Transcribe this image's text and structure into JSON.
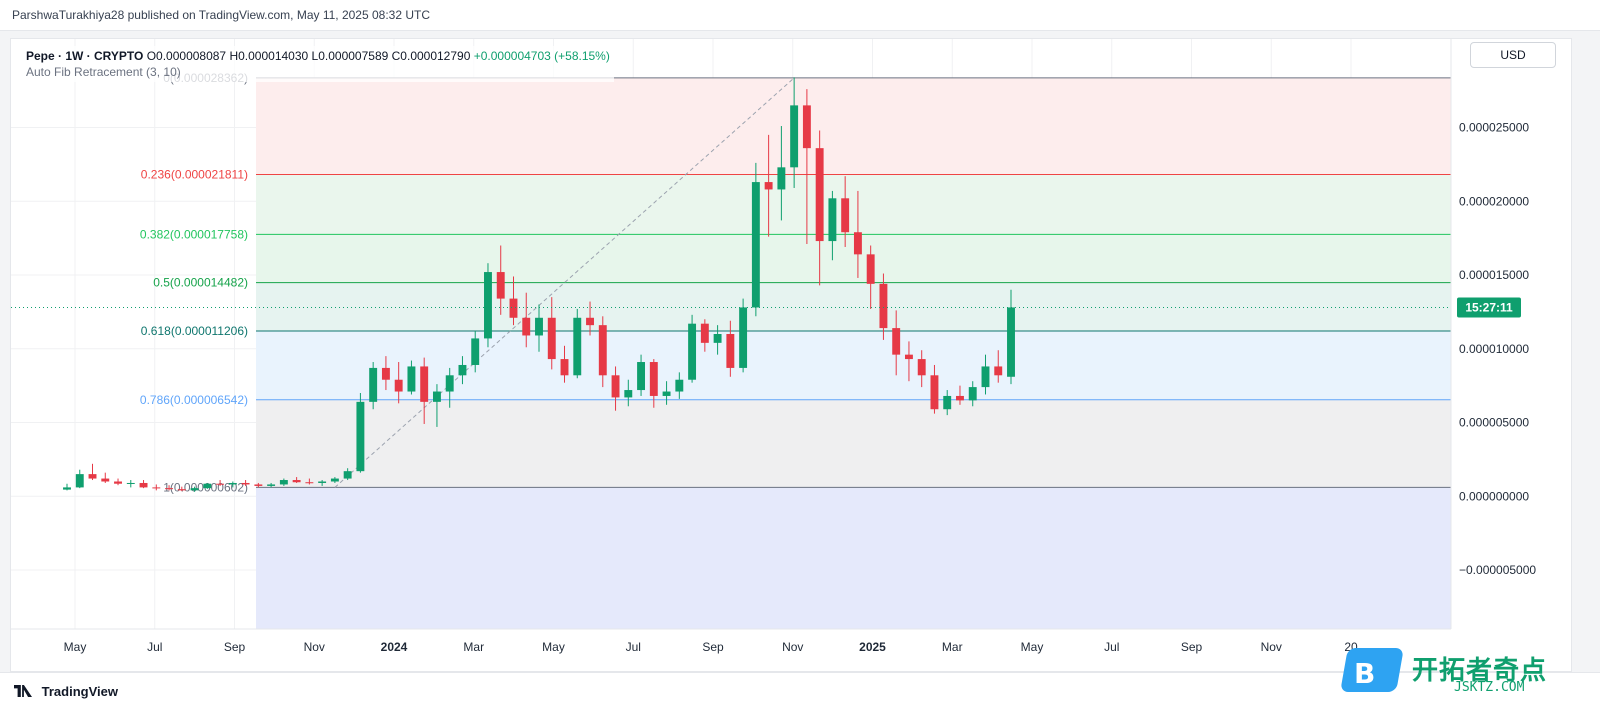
{
  "meta": {
    "attribution": "ParshwaTurakhiya28 published on TradingView.com, May 11, 2025 08:32 UTC",
    "currency": "USD",
    "brand": "TradingView",
    "watermark_cn": "开拓者奇点",
    "watermark_url": "JSKTZ.COM",
    "price_label": "15:27:11"
  },
  "legend": {
    "symbol": "Pepe · 1W · CRYPTO",
    "open": "O0.000008087",
    "high": "H0.000014030",
    "low": "L0.000007589",
    "close": "C0.000012790",
    "change": "+0.000004703 (+58.15%)",
    "indicator": "Auto Fib Retracement (3, 10)"
  },
  "chart_data": {
    "type": "candlestick",
    "title": "Pepe · 1W · CRYPTO",
    "xlabel": "",
    "ylabel": "USD",
    "ylim": [
      -9e-06,
      3.1e-05
    ],
    "y_ticks": [
      "0.000025000",
      "0.000020000",
      "0.000015000",
      "0.000010000",
      "0.000005000",
      "0.000000000",
      "−0.000005000"
    ],
    "y_tick_values": [
      2.5e-05,
      2e-05,
      1.5e-05,
      1e-05,
      5e-06,
      0,
      -5e-06
    ],
    "x_ticks": [
      "May",
      "Jul",
      "Sep",
      "Nov",
      "2024",
      "Mar",
      "May",
      "Jul",
      "Sep",
      "Nov",
      "2025",
      "Mar",
      "May",
      "Jul",
      "Sep",
      "Nov",
      "20"
    ],
    "fib_levels": [
      {
        "label": "0(0.000028362)",
        "value": 2.8362e-05,
        "color": "#6b7280"
      },
      {
        "label": "0.236(0.000021811)",
        "value": 2.1811e-05,
        "color": "#ef4444"
      },
      {
        "label": "0.382(0.000017758)",
        "value": 1.7758e-05,
        "color": "#22c55e"
      },
      {
        "label": "0.5(0.000014482)",
        "value": 1.4482e-05,
        "color": "#16a34a"
      },
      {
        "label": "0.618(0.000011206)",
        "value": 1.1206e-05,
        "color": "#0f766e"
      },
      {
        "label": "0.786(0.000006542)",
        "value": 6.542e-06,
        "color": "#60a5fa"
      },
      {
        "label": "1(0.000000602)",
        "value": 6.02e-07,
        "color": "#6b7280"
      }
    ],
    "candles": [
      {
        "o": 4.5e-07,
        "h": 8.5e-07,
        "l": 4e-07,
        "c": 6e-07
      },
      {
        "o": 6e-07,
        "h": 1.8e-06,
        "l": 5.5e-07,
        "c": 1.5e-06
      },
      {
        "o": 1.5e-06,
        "h": 2.2e-06,
        "l": 1.1e-06,
        "c": 1.2e-06
      },
      {
        "o": 1.2e-06,
        "h": 1.6e-06,
        "l": 9e-07,
        "c": 1e-06
      },
      {
        "o": 1e-06,
        "h": 1.2e-06,
        "l": 7.5e-07,
        "c": 8.5e-07
      },
      {
        "o": 8.5e-07,
        "h": 1.1e-06,
        "l": 6e-07,
        "c": 9e-07
      },
      {
        "o": 9e-07,
        "h": 1.1e-06,
        "l": 5.5e-07,
        "c": 6e-07
      },
      {
        "o": 6e-07,
        "h": 8e-07,
        "l": 4e-07,
        "c": 5.5e-07
      },
      {
        "o": 5.5e-07,
        "h": 7.5e-07,
        "l": 4e-07,
        "c": 4.8e-07
      },
      {
        "o": 4.8e-07,
        "h": 6.5e-07,
        "l": 3.5e-07,
        "c": 4e-07
      },
      {
        "o": 4e-07,
        "h": 6.5e-07,
        "l": 3e-07,
        "c": 5.5e-07
      },
      {
        "o": 5.5e-07,
        "h": 9e-07,
        "l": 5e-07,
        "c": 8.5e-07
      },
      {
        "o": 8.5e-07,
        "h": 1.1e-06,
        "l": 7e-07,
        "c": 8e-07
      },
      {
        "o": 8e-07,
        "h": 1e-06,
        "l": 6e-07,
        "c": 9e-07
      },
      {
        "o": 9e-07,
        "h": 1.1e-06,
        "l": 7e-07,
        "c": 8e-07
      },
      {
        "o": 8e-07,
        "h": 9e-07,
        "l": 6e-07,
        "c": 7e-07
      },
      {
        "o": 7e-07,
        "h": 9e-07,
        "l": 6e-07,
        "c": 8e-07
      },
      {
        "o": 8e-07,
        "h": 1.2e-06,
        "l": 7e-07,
        "c": 1.1e-06
      },
      {
        "o": 1.1e-06,
        "h": 1.3e-06,
        "l": 9e-07,
        "c": 9.5e-07
      },
      {
        "o": 9.5e-07,
        "h": 1.2e-06,
        "l": 8e-07,
        "c": 9e-07
      },
      {
        "o": 9e-07,
        "h": 1.1e-06,
        "l": 7e-07,
        "c": 1e-06
      },
      {
        "o": 1e-06,
        "h": 1.3e-06,
        "l": 9e-07,
        "c": 1.2e-06
      },
      {
        "o": 1.2e-06,
        "h": 1.9e-06,
        "l": 1.1e-06,
        "c": 1.7e-06
      },
      {
        "o": 1.7e-06,
        "h": 7e-06,
        "l": 1.6e-06,
        "c": 6.4e-06
      },
      {
        "o": 6.4e-06,
        "h": 9.1e-06,
        "l": 5.9e-06,
        "c": 8.7e-06
      },
      {
        "o": 8.7e-06,
        "h": 9.5e-06,
        "l": 7.2e-06,
        "c": 7.9e-06
      },
      {
        "o": 7.9e-06,
        "h": 9.1e-06,
        "l": 6.3e-06,
        "c": 7.1e-06
      },
      {
        "o": 7.1e-06,
        "h": 9.2e-06,
        "l": 6.9e-06,
        "c": 8.8e-06
      },
      {
        "o": 8.8e-06,
        "h": 9.4e-06,
        "l": 4.9e-06,
        "c": 6.4e-06
      },
      {
        "o": 6.4e-06,
        "h": 7.6e-06,
        "l": 4.7e-06,
        "c": 7.1e-06
      },
      {
        "o": 7.1e-06,
        "h": 8.7e-06,
        "l": 6e-06,
        "c": 8.2e-06
      },
      {
        "o": 8.2e-06,
        "h": 9.5e-06,
        "l": 7.6e-06,
        "c": 8.9e-06
      },
      {
        "o": 8.9e-06,
        "h": 1.12e-05,
        "l": 8.4e-06,
        "c": 1.07e-05
      },
      {
        "o": 1.07e-05,
        "h": 1.58e-05,
        "l": 1.01e-05,
        "c": 1.52e-05
      },
      {
        "o": 1.52e-05,
        "h": 1.7e-05,
        "l": 1.23e-05,
        "c": 1.34e-05
      },
      {
        "o": 1.34e-05,
        "h": 1.49e-05,
        "l": 1.16e-05,
        "c": 1.21e-05
      },
      {
        "o": 1.21e-05,
        "h": 1.38e-05,
        "l": 1.01e-05,
        "c": 1.09e-05
      },
      {
        "o": 1.09e-05,
        "h": 1.3e-05,
        "l": 9.8e-06,
        "c": 1.21e-05
      },
      {
        "o": 1.21e-05,
        "h": 1.35e-05,
        "l": 8.6e-06,
        "c": 9.3e-06
      },
      {
        "o": 9.3e-06,
        "h": 1.02e-05,
        "l": 7.7e-06,
        "c": 8.2e-06
      },
      {
        "o": 8.2e-06,
        "h": 1.27e-05,
        "l": 8e-06,
        "c": 1.21e-05
      },
      {
        "o": 1.21e-05,
        "h": 1.32e-05,
        "l": 1.09e-05,
        "c": 1.16e-05
      },
      {
        "o": 1.16e-05,
        "h": 1.22e-05,
        "l": 7.4e-06,
        "c": 8.2e-06
      },
      {
        "o": 8.2e-06,
        "h": 8.8e-06,
        "l": 5.8e-06,
        "c": 6.7e-06
      },
      {
        "o": 6.7e-06,
        "h": 7.9e-06,
        "l": 6.1e-06,
        "c": 7.2e-06
      },
      {
        "o": 7.2e-06,
        "h": 9.6e-06,
        "l": 6.8e-06,
        "c": 9.1e-06
      },
      {
        "o": 9.1e-06,
        "h": 9.3e-06,
        "l": 6e-06,
        "c": 6.8e-06
      },
      {
        "o": 6.8e-06,
        "h": 7.8e-06,
        "l": 6.2e-06,
        "c": 7.1e-06
      },
      {
        "o": 7.1e-06,
        "h": 8.4e-06,
        "l": 6.6e-06,
        "c": 7.9e-06
      },
      {
        "o": 7.9e-06,
        "h": 1.23e-05,
        "l": 7.7e-06,
        "c": 1.17e-05
      },
      {
        "o": 1.17e-05,
        "h": 1.2e-05,
        "l": 9.8e-06,
        "c": 1.04e-05
      },
      {
        "o": 1.04e-05,
        "h": 1.16e-05,
        "l": 9.6e-06,
        "c": 1.1e-05
      },
      {
        "o": 1.1e-05,
        "h": 1.19e-05,
        "l": 8.1e-06,
        "c": 8.7e-06
      },
      {
        "o": 8.7e-06,
        "h": 1.34e-05,
        "l": 8.4e-06,
        "c": 1.28e-05
      },
      {
        "o": 1.28e-05,
        "h": 2.26e-05,
        "l": 1.22e-05,
        "c": 2.13e-05
      },
      {
        "o": 2.13e-05,
        "h": 2.45e-05,
        "l": 1.76e-05,
        "c": 2.08e-05
      },
      {
        "o": 2.08e-05,
        "h": 2.51e-05,
        "l": 1.87e-05,
        "c": 2.23e-05
      },
      {
        "o": 2.23e-05,
        "h": 2.84e-05,
        "l": 2.09e-05,
        "c": 2.65e-05
      },
      {
        "o": 2.65e-05,
        "h": 2.76e-05,
        "l": 1.71e-05,
        "c": 2.36e-05
      },
      {
        "o": 2.36e-05,
        "h": 2.48e-05,
        "l": 1.43e-05,
        "c": 1.73e-05
      },
      {
        "o": 1.73e-05,
        "h": 2.07e-05,
        "l": 1.6e-05,
        "c": 2.02e-05
      },
      {
        "o": 2.02e-05,
        "h": 2.17e-05,
        "l": 1.69e-05,
        "c": 1.79e-05
      },
      {
        "o": 1.79e-05,
        "h": 2.07e-05,
        "l": 1.48e-05,
        "c": 1.64e-05
      },
      {
        "o": 1.64e-05,
        "h": 1.7e-05,
        "l": 1.27e-05,
        "c": 1.44e-05
      },
      {
        "o": 1.44e-05,
        "h": 1.51e-05,
        "l": 1.06e-05,
        "c": 1.14e-05
      },
      {
        "o": 1.14e-05,
        "h": 1.26e-05,
        "l": 8.2e-06,
        "c": 9.6e-06
      },
      {
        "o": 9.6e-06,
        "h": 1.05e-05,
        "l": 7.8e-06,
        "c": 9.3e-06
      },
      {
        "o": 9.3e-06,
        "h": 9.9e-06,
        "l": 7.4e-06,
        "c": 8.2e-06
      },
      {
        "o": 8.2e-06,
        "h": 8.9e-06,
        "l": 5.6e-06,
        "c": 5.9e-06
      },
      {
        "o": 5.9e-06,
        "h": 7.2e-06,
        "l": 5.5e-06,
        "c": 6.8e-06
      },
      {
        "o": 6.8e-06,
        "h": 7.5e-06,
        "l": 6.2e-06,
        "c": 6.5e-06
      },
      {
        "o": 6.5e-06,
        "h": 7.8e-06,
        "l": 6.1e-06,
        "c": 7.4e-06
      },
      {
        "o": 7.4e-06,
        "h": 9.6e-06,
        "l": 6.9e-06,
        "c": 8.8e-06
      },
      {
        "o": 8.8e-06,
        "h": 9.9e-06,
        "l": 7.7e-06,
        "c": 8.2e-06
      },
      {
        "o": 8.1e-06,
        "h": 1.4e-05,
        "l": 7.6e-06,
        "c": 1.28e-05
      }
    ]
  }
}
